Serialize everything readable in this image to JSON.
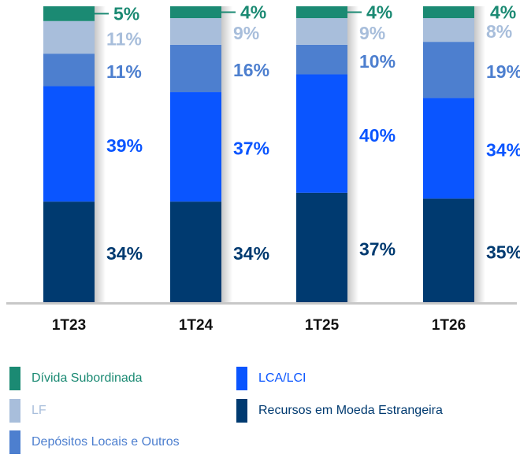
{
  "chart_data": {
    "type": "stacked_bar",
    "categories": [
      "1T23",
      "1T24",
      "1T25",
      "1T26"
    ],
    "ylim": [
      0,
      100
    ],
    "series": [
      {
        "name": "Recursos em Moeda Estrangeira",
        "color": "#003a70",
        "values": [
          34,
          34,
          37,
          35
        ],
        "value_labels": [
          "34%",
          "34%",
          "37%",
          "35%"
        ]
      },
      {
        "name": "LCA/LCI",
        "color": "#0a55ff",
        "values": [
          39,
          37,
          40,
          34
        ],
        "value_labels": [
          "39%",
          "37%",
          "40%",
          "34%"
        ]
      },
      {
        "name": "Depósitos Locais e Outros",
        "color": "#4d7fcf",
        "values": [
          11,
          16,
          10,
          19
        ],
        "value_labels": [
          "11%",
          "16%",
          "10%",
          "19%"
        ]
      },
      {
        "name": "LF",
        "color": "#a8bedb",
        "values": [
          11,
          9,
          9,
          8
        ],
        "value_labels": [
          "11%",
          "9%",
          "9%",
          "8%"
        ]
      },
      {
        "name": "Dívida Subordinada",
        "color": "#1b8a73",
        "values": [
          5,
          4,
          4,
          4
        ],
        "value_labels": [
          "5%",
          "4%",
          "4%",
          "4%"
        ]
      }
    ]
  }
}
